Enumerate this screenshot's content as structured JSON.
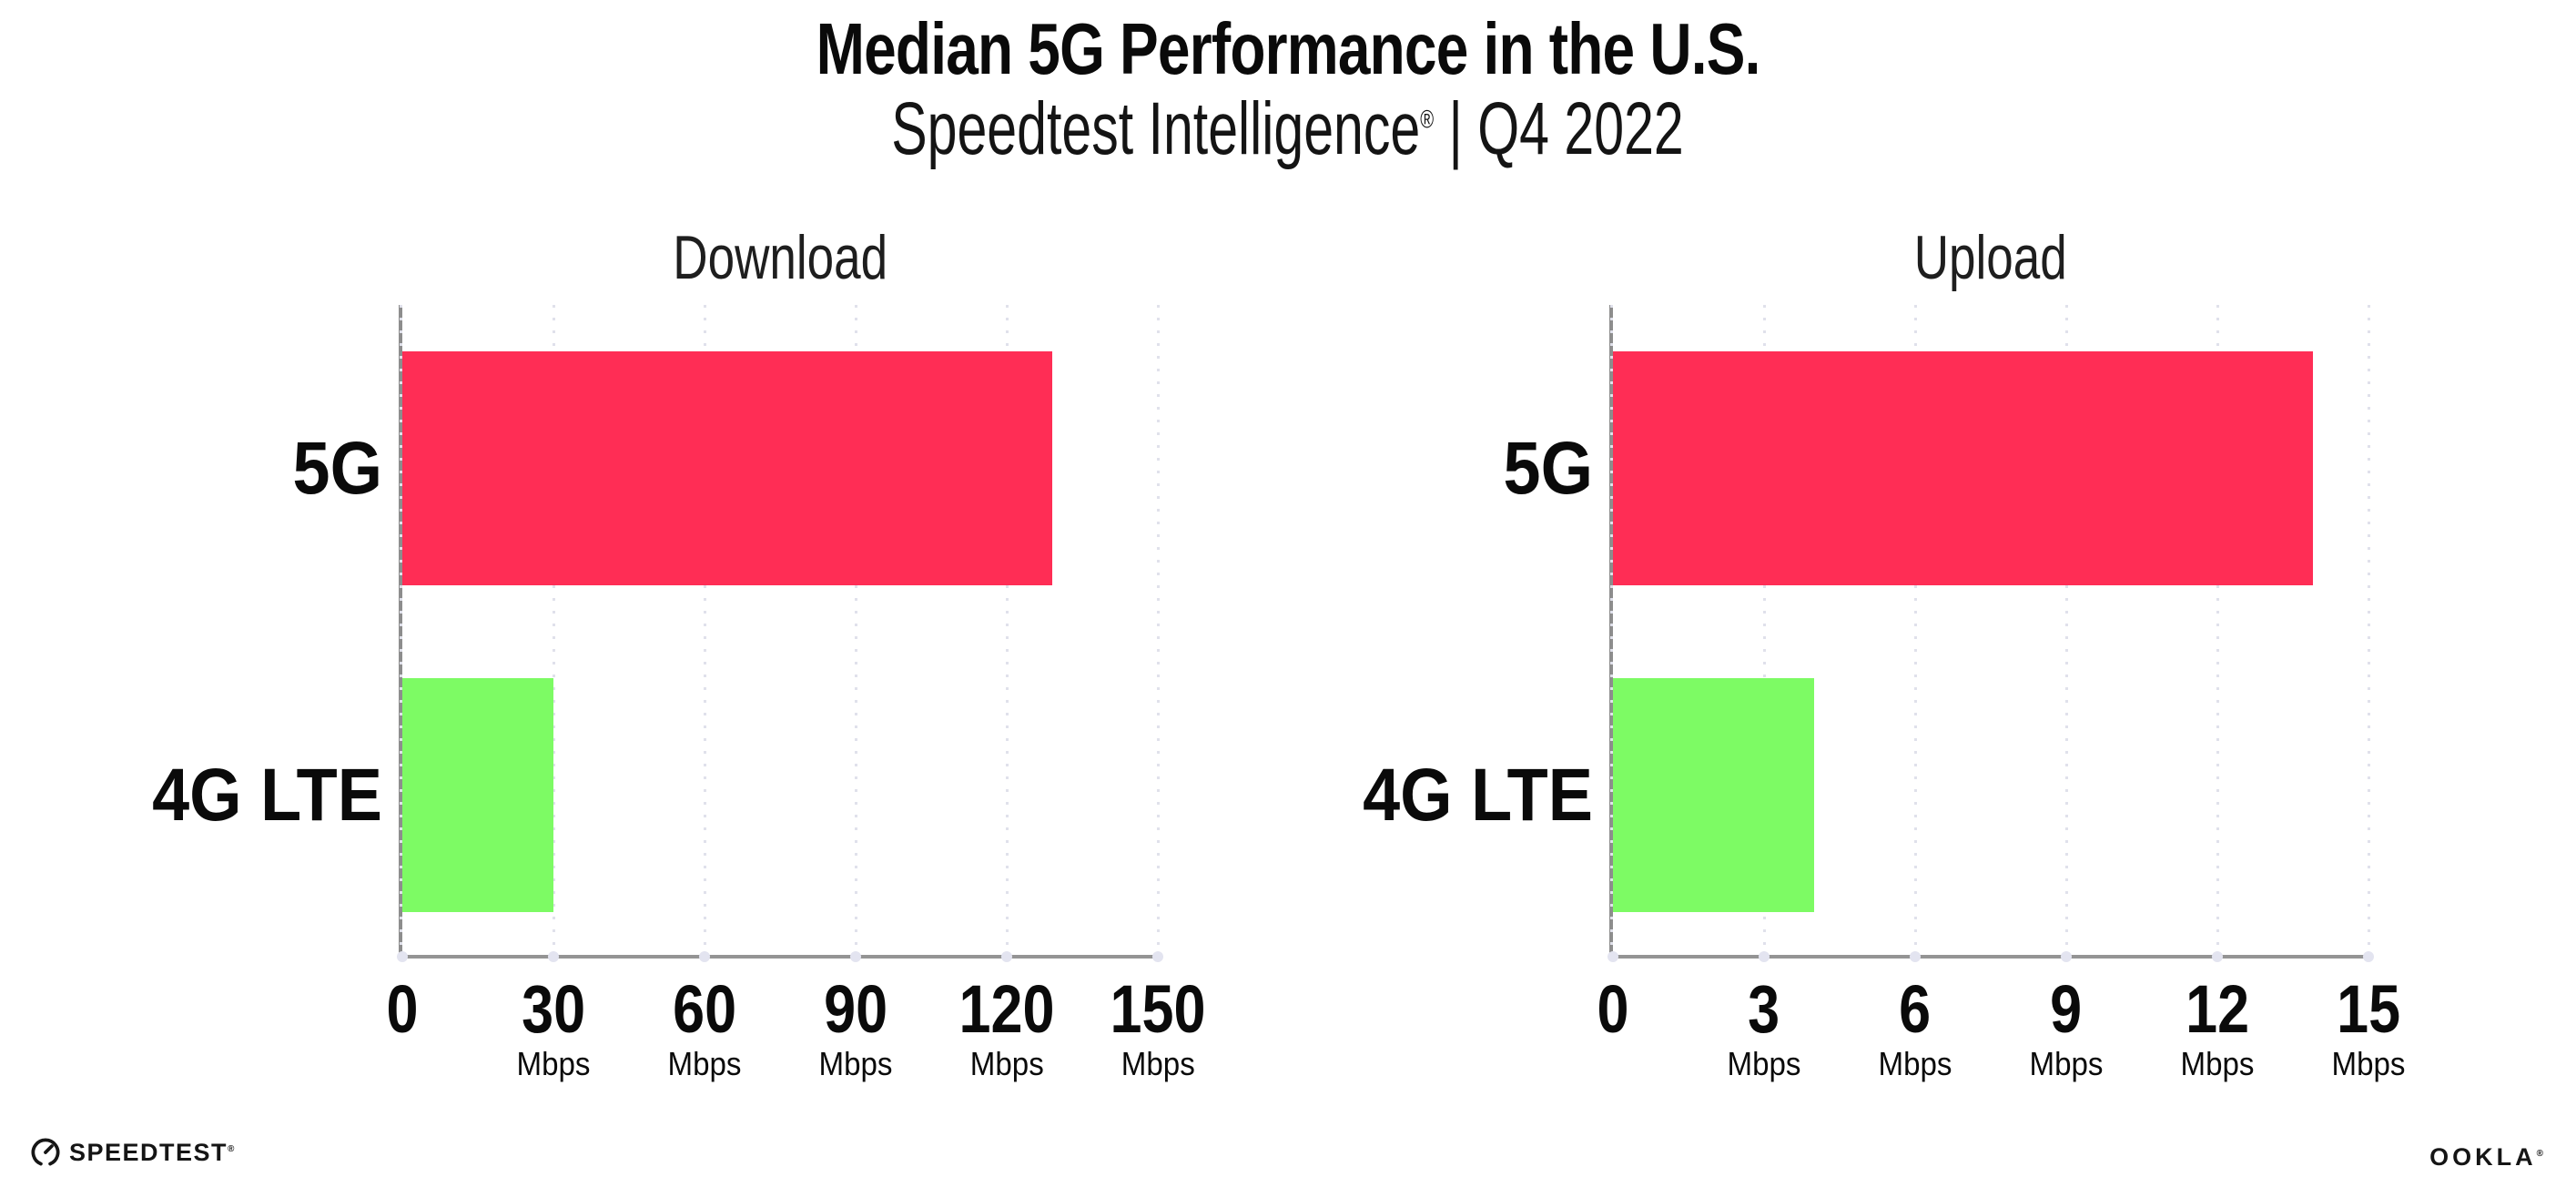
{
  "header": {
    "title": "Median 5G Performance in the U.S.",
    "subtitle_brand": "Speedtest Intelligence",
    "subtitle_reg": "®",
    "subtitle_rest": " | Q4 2022"
  },
  "colors": {
    "bar_5g": "#FF2D55",
    "bar_4g_lte": "#7DFB64",
    "axis": "#8d8d8d",
    "gridline": "#e0e1eb",
    "text": "#0a0a0a"
  },
  "footer": {
    "speedtest_label": "SPEEDTEST",
    "speedtest_reg": "®",
    "speedtest_icon": "gauge-icon",
    "ookla_label": "OOKLA",
    "ookla_reg": "®"
  },
  "chart_data": [
    {
      "type": "bar",
      "orientation": "horizontal",
      "title": "Download",
      "categories": [
        "5G",
        "4G LTE"
      ],
      "values": [
        129,
        30
      ],
      "unit": "Mbps",
      "xlabel": "",
      "ylabel": "",
      "xlim": [
        0,
        150
      ],
      "xticks": [
        0,
        30,
        60,
        90,
        120,
        150
      ],
      "bar_colors": [
        "#FF2D55",
        "#7DFB64"
      ],
      "grid": "vertical-dotted",
      "legend": "none"
    },
    {
      "type": "bar",
      "orientation": "horizontal",
      "title": "Upload",
      "categories": [
        "5G",
        "4G LTE"
      ],
      "values": [
        13.9,
        4
      ],
      "unit": "Mbps",
      "xlabel": "",
      "ylabel": "",
      "xlim": [
        0,
        15
      ],
      "xticks": [
        0,
        3,
        6,
        9,
        12,
        15
      ],
      "bar_colors": [
        "#FF2D55",
        "#7DFB64"
      ],
      "grid": "vertical-dotted",
      "legend": "none"
    }
  ]
}
